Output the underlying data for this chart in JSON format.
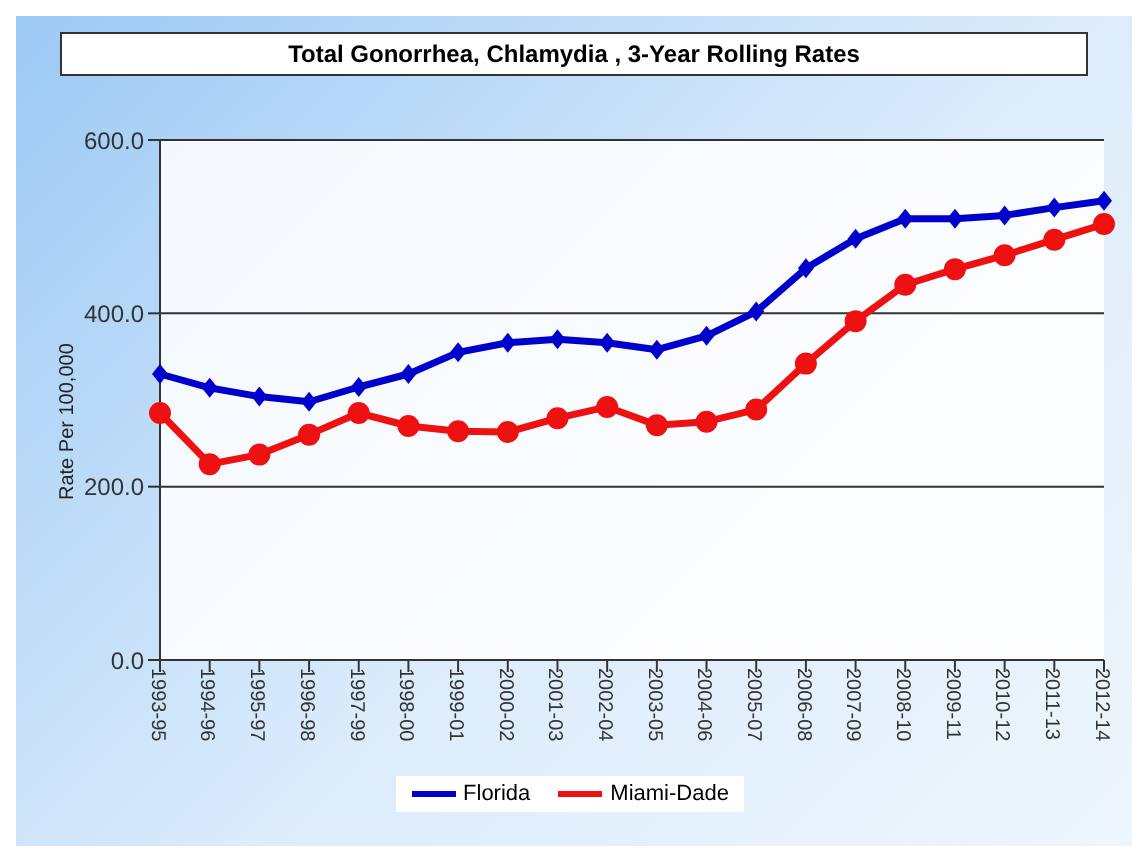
{
  "chart_data": {
    "type": "line",
    "title": "Total Gonorrhea, Chlamydia , 3-Year Rolling Rates",
    "ylabel": "Rate Per 100,000",
    "categories": [
      "1993-95",
      "1994-96",
      "1995-97",
      "1996-98",
      "1997-99",
      "1998-00",
      "1999-01",
      "2000-02",
      "2001-03",
      "2002-04",
      "2003-05",
      "2004-06",
      "2005-07",
      "2006-08",
      "2007-09",
      "2008-10",
      "2009-11",
      "2010-12",
      "2011-13",
      "2012-14"
    ],
    "series": [
      {
        "name": "Miami-Dade",
        "color": "#ee1111",
        "marker": "circle",
        "values": [
          285,
          226,
          237,
          260,
          285,
          270,
          264,
          263,
          279,
          292,
          271,
          275,
          289,
          342,
          391,
          433,
          451,
          467,
          485,
          503
        ]
      },
      {
        "name": "Florida",
        "color": "#0000cc",
        "marker": "diamond",
        "values": [
          330,
          314,
          304,
          298,
          315,
          330,
          355,
          366,
          370,
          366,
          358,
          374,
          402,
          452,
          486,
          509,
          509,
          513,
          522,
          530
        ]
      }
    ],
    "ylim": [
      0,
      600
    ],
    "yticks": [
      {
        "value": 0,
        "label": "0.0"
      },
      {
        "value": 200,
        "label": "200.0"
      },
      {
        "value": 400,
        "label": "400.0"
      },
      {
        "value": 600,
        "label": "600.0"
      }
    ],
    "grid": "y",
    "legend": "bottom",
    "line_style": "solid"
  }
}
